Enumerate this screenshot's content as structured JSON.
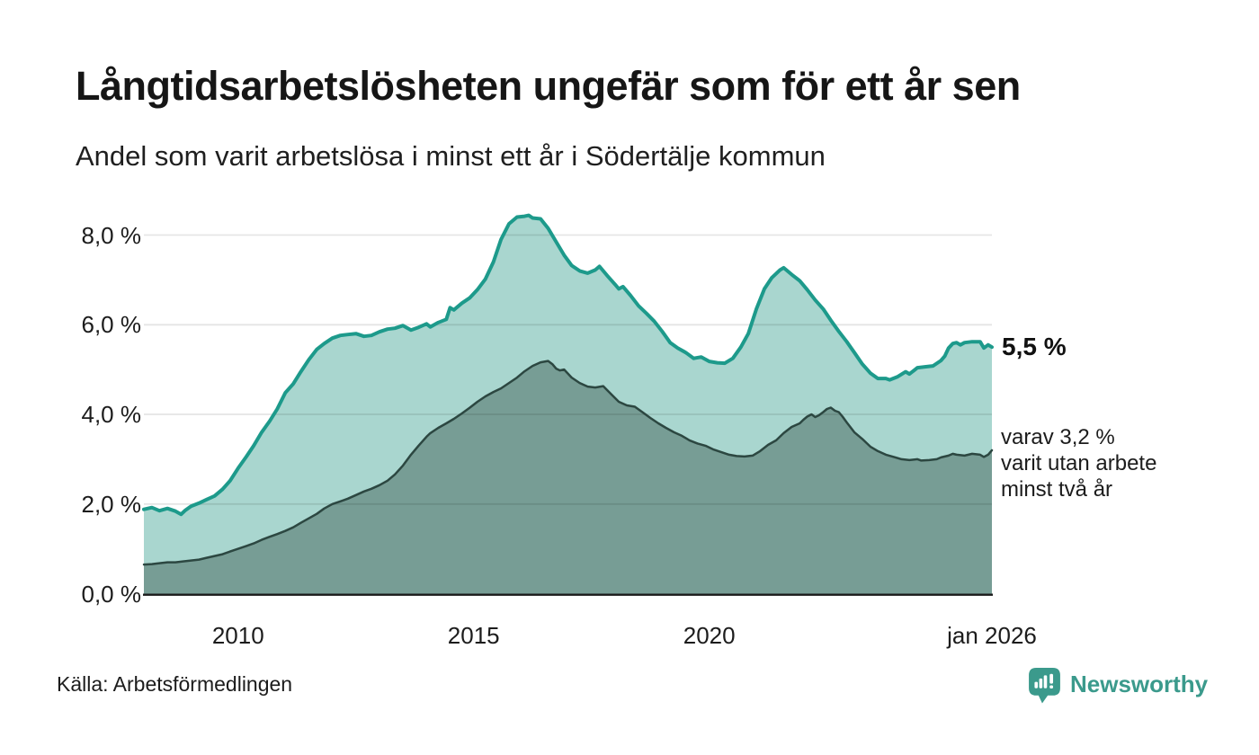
{
  "header": {
    "title": "Långtidsarbetslösheten ungefär som för ett år sen",
    "subtitle": "Andel som varit arbetslösa i minst ett år i Södertälje kommun"
  },
  "annotations": {
    "latest_value": "5,5 %",
    "secondary": {
      "lines": [
        "varav 3,2 %",
        "varit utan arbete",
        "minst två år"
      ]
    }
  },
  "footer": {
    "source": "Källa: Arbetsförmedlingen",
    "brand": {
      "name": "Newsworthy",
      "color": "#3b9a8c",
      "icon": "newsworthy-speech-bubble-chart-icon"
    }
  },
  "chart_data": {
    "type": "area",
    "title": "Långtidsarbetslösheten ungefär som för ett år sen",
    "subtitle": "Andel som varit arbetslösa i minst ett år i Södertälje kommun",
    "unit": "%",
    "grid_color": "rgba(0,0,0,0.10)",
    "axis_color": "#1a1a1a",
    "x_axis": {
      "start": 2008,
      "end": 2026,
      "ticks": [
        {
          "label": "2010",
          "year": 2010
        },
        {
          "label": "2015",
          "year": 2015
        },
        {
          "label": "2020",
          "year": 2020
        },
        {
          "label": "jan 2026",
          "year": 2026
        }
      ]
    },
    "y_axis": {
      "min": 0,
      "max": 8,
      "gridlines": [
        2,
        4,
        6,
        8
      ],
      "ticks": [
        {
          "label": "0,0 %",
          "value": 0
        },
        {
          "label": "2,0 %",
          "value": 2
        },
        {
          "label": "4,0 %",
          "value": 4
        },
        {
          "label": "6,0 %",
          "value": 6
        },
        {
          "label": "8,0 %",
          "value": 8
        }
      ]
    },
    "series": [
      {
        "name": "Andel arbetslösa minst ett år",
        "stroke": "#1d9a8b",
        "fill": "#a9d6cf",
        "stroke_width": 4,
        "end_value": 5.5,
        "end_label": "5,5 %",
        "points": [
          [
            2008.0,
            1.88
          ],
          [
            2008.17,
            1.92
          ],
          [
            2008.33,
            1.85
          ],
          [
            2008.5,
            1.9
          ],
          [
            2008.67,
            1.84
          ],
          [
            2008.79,
            1.77
          ],
          [
            2008.88,
            1.86
          ],
          [
            2009.0,
            1.95
          ],
          [
            2009.17,
            2.02
          ],
          [
            2009.33,
            2.1
          ],
          [
            2009.5,
            2.18
          ],
          [
            2009.67,
            2.33
          ],
          [
            2009.83,
            2.52
          ],
          [
            2010.0,
            2.8
          ],
          [
            2010.17,
            3.05
          ],
          [
            2010.33,
            3.3
          ],
          [
            2010.5,
            3.6
          ],
          [
            2010.67,
            3.85
          ],
          [
            2010.83,
            4.12
          ],
          [
            2011.0,
            4.48
          ],
          [
            2011.17,
            4.68
          ],
          [
            2011.33,
            4.95
          ],
          [
            2011.5,
            5.22
          ],
          [
            2011.67,
            5.45
          ],
          [
            2011.83,
            5.58
          ],
          [
            2012.0,
            5.7
          ],
          [
            2012.17,
            5.76
          ],
          [
            2012.33,
            5.78
          ],
          [
            2012.5,
            5.8
          ],
          [
            2012.67,
            5.74
          ],
          [
            2012.83,
            5.76
          ],
          [
            2013.0,
            5.84
          ],
          [
            2013.17,
            5.9
          ],
          [
            2013.33,
            5.92
          ],
          [
            2013.5,
            5.98
          ],
          [
            2013.67,
            5.88
          ],
          [
            2013.83,
            5.94
          ],
          [
            2014.0,
            6.02
          ],
          [
            2014.08,
            5.95
          ],
          [
            2014.25,
            6.05
          ],
          [
            2014.42,
            6.12
          ],
          [
            2014.5,
            6.38
          ],
          [
            2014.58,
            6.33
          ],
          [
            2014.75,
            6.48
          ],
          [
            2014.92,
            6.6
          ],
          [
            2015.08,
            6.78
          ],
          [
            2015.25,
            7.02
          ],
          [
            2015.42,
            7.4
          ],
          [
            2015.58,
            7.9
          ],
          [
            2015.75,
            8.25
          ],
          [
            2015.92,
            8.4
          ],
          [
            2016.08,
            8.42
          ],
          [
            2016.17,
            8.44
          ],
          [
            2016.25,
            8.38
          ],
          [
            2016.42,
            8.36
          ],
          [
            2016.58,
            8.15
          ],
          [
            2016.75,
            7.85
          ],
          [
            2016.92,
            7.55
          ],
          [
            2017.08,
            7.32
          ],
          [
            2017.25,
            7.2
          ],
          [
            2017.42,
            7.15
          ],
          [
            2017.58,
            7.22
          ],
          [
            2017.67,
            7.3
          ],
          [
            2017.83,
            7.1
          ],
          [
            2018.0,
            6.9
          ],
          [
            2018.08,
            6.8
          ],
          [
            2018.17,
            6.85
          ],
          [
            2018.33,
            6.65
          ],
          [
            2018.5,
            6.42
          ],
          [
            2018.67,
            6.25
          ],
          [
            2018.83,
            6.08
          ],
          [
            2019.0,
            5.85
          ],
          [
            2019.17,
            5.6
          ],
          [
            2019.33,
            5.48
          ],
          [
            2019.5,
            5.38
          ],
          [
            2019.67,
            5.25
          ],
          [
            2019.83,
            5.28
          ],
          [
            2020.0,
            5.18
          ],
          [
            2020.17,
            5.15
          ],
          [
            2020.33,
            5.14
          ],
          [
            2020.5,
            5.25
          ],
          [
            2020.67,
            5.5
          ],
          [
            2020.83,
            5.8
          ],
          [
            2021.0,
            6.35
          ],
          [
            2021.17,
            6.8
          ],
          [
            2021.33,
            7.05
          ],
          [
            2021.5,
            7.22
          ],
          [
            2021.58,
            7.27
          ],
          [
            2021.75,
            7.12
          ],
          [
            2021.92,
            6.98
          ],
          [
            2022.08,
            6.78
          ],
          [
            2022.25,
            6.55
          ],
          [
            2022.42,
            6.35
          ],
          [
            2022.58,
            6.1
          ],
          [
            2022.75,
            5.85
          ],
          [
            2022.92,
            5.62
          ],
          [
            2023.08,
            5.38
          ],
          [
            2023.25,
            5.12
          ],
          [
            2023.42,
            4.92
          ],
          [
            2023.58,
            4.8
          ],
          [
            2023.75,
            4.8
          ],
          [
            2023.83,
            4.77
          ],
          [
            2024.0,
            4.84
          ],
          [
            2024.17,
            4.95
          ],
          [
            2024.25,
            4.9
          ],
          [
            2024.42,
            5.04
          ],
          [
            2024.58,
            5.06
          ],
          [
            2024.75,
            5.08
          ],
          [
            2024.92,
            5.2
          ],
          [
            2025.0,
            5.3
          ],
          [
            2025.08,
            5.48
          ],
          [
            2025.17,
            5.58
          ],
          [
            2025.25,
            5.6
          ],
          [
            2025.33,
            5.55
          ],
          [
            2025.42,
            5.6
          ],
          [
            2025.58,
            5.62
          ],
          [
            2025.75,
            5.62
          ],
          [
            2025.83,
            5.48
          ],
          [
            2025.92,
            5.55
          ],
          [
            2026.0,
            5.5
          ]
        ]
      },
      {
        "name": "Andel arbetslösa minst två år",
        "stroke": "#2c4741",
        "fill": "#779d95",
        "stroke_width": 2.5,
        "end_value": 3.2,
        "end_label": "varav 3,2 % varit utan arbete minst två år",
        "points": [
          [
            2008.0,
            0.65
          ],
          [
            2008.17,
            0.66
          ],
          [
            2008.33,
            0.68
          ],
          [
            2008.5,
            0.7
          ],
          [
            2008.67,
            0.7
          ],
          [
            2008.83,
            0.72
          ],
          [
            2009.0,
            0.74
          ],
          [
            2009.17,
            0.76
          ],
          [
            2009.33,
            0.8
          ],
          [
            2009.5,
            0.84
          ],
          [
            2009.67,
            0.88
          ],
          [
            2009.83,
            0.94
          ],
          [
            2010.0,
            1.0
          ],
          [
            2010.17,
            1.06
          ],
          [
            2010.33,
            1.12
          ],
          [
            2010.5,
            1.2
          ],
          [
            2010.67,
            1.27
          ],
          [
            2010.83,
            1.33
          ],
          [
            2011.0,
            1.4
          ],
          [
            2011.17,
            1.48
          ],
          [
            2011.33,
            1.58
          ],
          [
            2011.5,
            1.68
          ],
          [
            2011.67,
            1.78
          ],
          [
            2011.83,
            1.9
          ],
          [
            2012.0,
            2.0
          ],
          [
            2012.17,
            2.06
          ],
          [
            2012.33,
            2.12
          ],
          [
            2012.5,
            2.2
          ],
          [
            2012.67,
            2.28
          ],
          [
            2012.83,
            2.34
          ],
          [
            2013.0,
            2.42
          ],
          [
            2013.17,
            2.52
          ],
          [
            2013.33,
            2.66
          ],
          [
            2013.5,
            2.86
          ],
          [
            2013.67,
            3.1
          ],
          [
            2013.83,
            3.3
          ],
          [
            2014.0,
            3.5
          ],
          [
            2014.08,
            3.58
          ],
          [
            2014.25,
            3.7
          ],
          [
            2014.42,
            3.8
          ],
          [
            2014.58,
            3.9
          ],
          [
            2014.75,
            4.02
          ],
          [
            2014.92,
            4.15
          ],
          [
            2015.08,
            4.28
          ],
          [
            2015.25,
            4.4
          ],
          [
            2015.42,
            4.5
          ],
          [
            2015.58,
            4.58
          ],
          [
            2015.75,
            4.7
          ],
          [
            2015.92,
            4.82
          ],
          [
            2016.08,
            4.96
          ],
          [
            2016.25,
            5.08
          ],
          [
            2016.42,
            5.16
          ],
          [
            2016.58,
            5.19
          ],
          [
            2016.67,
            5.12
          ],
          [
            2016.75,
            5.02
          ],
          [
            2016.83,
            4.98
          ],
          [
            2016.92,
            5.0
          ],
          [
            2017.08,
            4.82
          ],
          [
            2017.25,
            4.7
          ],
          [
            2017.42,
            4.62
          ],
          [
            2017.58,
            4.6
          ],
          [
            2017.75,
            4.63
          ],
          [
            2017.92,
            4.45
          ],
          [
            2018.08,
            4.28
          ],
          [
            2018.25,
            4.2
          ],
          [
            2018.42,
            4.17
          ],
          [
            2018.58,
            4.05
          ],
          [
            2018.75,
            3.92
          ],
          [
            2018.92,
            3.8
          ],
          [
            2019.08,
            3.7
          ],
          [
            2019.25,
            3.6
          ],
          [
            2019.42,
            3.52
          ],
          [
            2019.58,
            3.42
          ],
          [
            2019.75,
            3.35
          ],
          [
            2019.92,
            3.3
          ],
          [
            2020.08,
            3.22
          ],
          [
            2020.25,
            3.16
          ],
          [
            2020.42,
            3.1
          ],
          [
            2020.58,
            3.07
          ],
          [
            2020.75,
            3.06
          ],
          [
            2020.92,
            3.08
          ],
          [
            2021.08,
            3.18
          ],
          [
            2021.25,
            3.32
          ],
          [
            2021.42,
            3.42
          ],
          [
            2021.58,
            3.58
          ],
          [
            2021.75,
            3.72
          ],
          [
            2021.92,
            3.8
          ],
          [
            2022.0,
            3.88
          ],
          [
            2022.08,
            3.95
          ],
          [
            2022.17,
            4.0
          ],
          [
            2022.25,
            3.94
          ],
          [
            2022.33,
            3.98
          ],
          [
            2022.42,
            4.05
          ],
          [
            2022.5,
            4.12
          ],
          [
            2022.58,
            4.15
          ],
          [
            2022.67,
            4.08
          ],
          [
            2022.75,
            4.05
          ],
          [
            2022.83,
            3.95
          ],
          [
            2022.92,
            3.82
          ],
          [
            2023.08,
            3.6
          ],
          [
            2023.25,
            3.45
          ],
          [
            2023.42,
            3.28
          ],
          [
            2023.58,
            3.18
          ],
          [
            2023.75,
            3.1
          ],
          [
            2023.92,
            3.05
          ],
          [
            2024.08,
            3.0
          ],
          [
            2024.25,
            2.98
          ],
          [
            2024.42,
            3.0
          ],
          [
            2024.5,
            2.97
          ],
          [
            2024.67,
            2.98
          ],
          [
            2024.83,
            3.0
          ],
          [
            2024.92,
            3.04
          ],
          [
            2025.08,
            3.08
          ],
          [
            2025.17,
            3.12
          ],
          [
            2025.25,
            3.1
          ],
          [
            2025.42,
            3.08
          ],
          [
            2025.58,
            3.12
          ],
          [
            2025.75,
            3.1
          ],
          [
            2025.83,
            3.05
          ],
          [
            2025.92,
            3.1
          ],
          [
            2026.0,
            3.2
          ]
        ]
      }
    ]
  }
}
